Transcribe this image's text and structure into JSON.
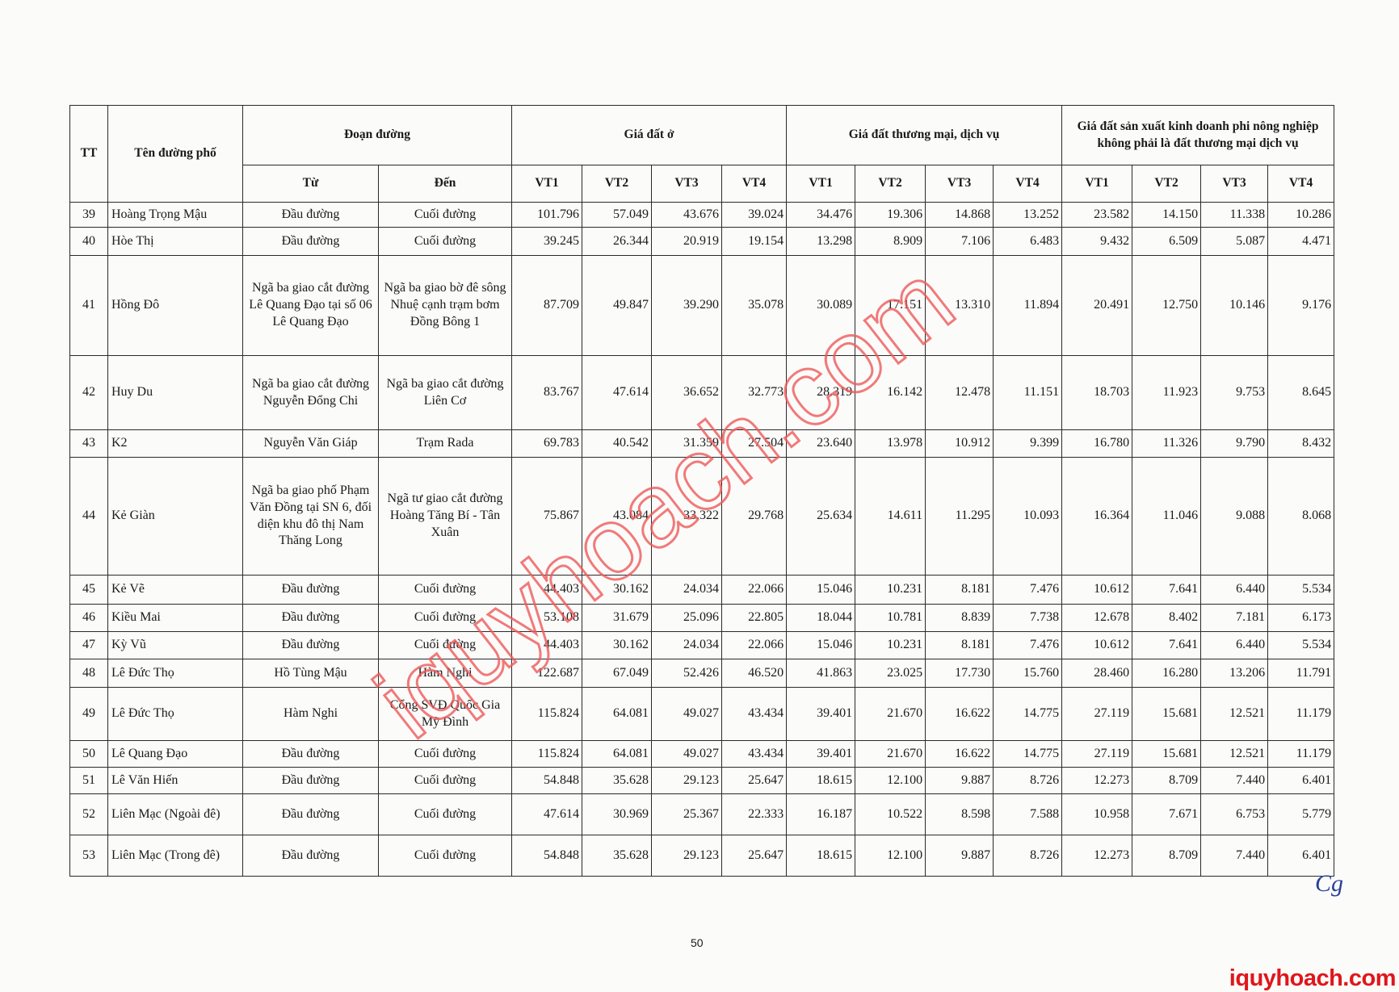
{
  "header": {
    "tt": "TT",
    "street": "Tên đường phố",
    "segment": "Đoạn đường",
    "from": "Từ",
    "to": "Đến",
    "group_residential": "Giá đất ở",
    "group_commercial": "Giá đất thương mại, dịch vụ",
    "group_production": "Giá đất sản xuất kinh doanh phi nông nghiệp không phải là đất thương mại dịch vụ",
    "positions": [
      "VT1",
      "VT2",
      "VT3",
      "VT4",
      "VT1",
      "VT2",
      "VT3",
      "VT4",
      "VT1",
      "VT2",
      "VT3",
      "VT4"
    ]
  },
  "rows": [
    {
      "tt": "39",
      "street": "Hoàng Trọng Mậu",
      "from": "Đầu đường",
      "to": "Cuối đường",
      "prices": [
        "101.796",
        "57.049",
        "43.676",
        "39.024",
        "34.476",
        "19.306",
        "14.868",
        "13.252",
        "23.582",
        "14.150",
        "11.338",
        "10.286"
      ]
    },
    {
      "tt": "40",
      "street": "Hòe Thị",
      "from": "Đầu đường",
      "to": "Cuối đường",
      "prices": [
        "39.245",
        "26.344",
        "20.919",
        "19.154",
        "13.298",
        "8.909",
        "7.106",
        "6.483",
        "9.432",
        "6.509",
        "5.087",
        "4.471"
      ]
    },
    {
      "tt": "41",
      "street": "Hồng Đô",
      "from": "Ngã ba giao cắt đường Lê Quang Đạo tại số 06 Lê Quang Đạo",
      "to": "Ngã ba giao bờ đê sông Nhuệ cạnh trạm bơm Đồng Bông 1",
      "prices": [
        "87.709",
        "49.847",
        "39.290",
        "35.078",
        "30.089",
        "17.151",
        "13.310",
        "11.894",
        "20.491",
        "12.750",
        "10.146",
        "9.176"
      ]
    },
    {
      "tt": "42",
      "street": "Huy Du",
      "from": "Ngã ba giao cắt đường Nguyễn Đổng Chi",
      "to": "Ngã ba giao cắt đường Liên Cơ",
      "prices": [
        "83.767",
        "47.614",
        "36.652",
        "32.773",
        "28.319",
        "16.142",
        "12.478",
        "11.151",
        "18.703",
        "11.923",
        "9.753",
        "8.645"
      ]
    },
    {
      "tt": "43",
      "street": "K2",
      "from": "Nguyễn Văn Giáp",
      "to": "Trạm Rada",
      "prices": [
        "69.783",
        "40.542",
        "31.359",
        "27.504",
        "23.640",
        "13.978",
        "10.912",
        "9.399",
        "16.780",
        "11.326",
        "9.790",
        "8.432"
      ]
    },
    {
      "tt": "44",
      "street": "Kẻ Giàn",
      "from": "Ngã ba giao phố Phạm Văn Đồng tại SN 6, đối diện khu đô thị Nam Thăng Long",
      "to": "Ngã tư giao cắt đường Hoàng Tăng Bí - Tân Xuân",
      "prices": [
        "75.867",
        "43.084",
        "33.322",
        "29.768",
        "25.634",
        "14.611",
        "11.295",
        "10.093",
        "16.364",
        "11.046",
        "9.088",
        "8.068"
      ]
    },
    {
      "tt": "45",
      "street": "Kẻ Vẽ",
      "from": "Đầu đường",
      "to": "Cuối đường",
      "prices": [
        "44.403",
        "30.162",
        "24.034",
        "22.066",
        "15.046",
        "10.231",
        "8.181",
        "7.476",
        "10.612",
        "7.641",
        "6.440",
        "5.534"
      ]
    },
    {
      "tt": "46",
      "street": "Kiều Mai",
      "from": "Đầu đường",
      "to": "Cuối đường",
      "prices": [
        "53.108",
        "31.679",
        "25.096",
        "22.805",
        "18.044",
        "10.781",
        "8.839",
        "7.738",
        "12.678",
        "8.402",
        "7.181",
        "6.173"
      ]
    },
    {
      "tt": "47",
      "street": "Kỳ Vũ",
      "from": "Đầu đường",
      "to": "Cuối đường",
      "prices": [
        "44.403",
        "30.162",
        "24.034",
        "22.066",
        "15.046",
        "10.231",
        "8.181",
        "7.476",
        "10.612",
        "7.641",
        "6.440",
        "5.534"
      ]
    },
    {
      "tt": "48",
      "street": "Lê Đức Thọ",
      "from": "Hồ Tùng Mậu",
      "to": "Hàm Nghi",
      "prices": [
        "122.687",
        "67.049",
        "52.426",
        "46.520",
        "41.863",
        "23.025",
        "17.730",
        "15.760",
        "28.460",
        "16.280",
        "13.206",
        "11.791"
      ]
    },
    {
      "tt": "49",
      "street": "Lê Đức Thọ",
      "from": "Hàm Nghi",
      "to": "Cổng SVĐ Quốc Gia Mỹ Đình",
      "prices": [
        "115.824",
        "64.081",
        "49.027",
        "43.434",
        "39.401",
        "21.670",
        "16.622",
        "14.775",
        "27.119",
        "15.681",
        "12.521",
        "11.179"
      ]
    },
    {
      "tt": "50",
      "street": "Lê Quang Đạo",
      "from": "Đầu đường",
      "to": "Cuối đường",
      "prices": [
        "115.824",
        "64.081",
        "49.027",
        "43.434",
        "39.401",
        "21.670",
        "16.622",
        "14.775",
        "27.119",
        "15.681",
        "12.521",
        "11.179"
      ]
    },
    {
      "tt": "51",
      "street": "Lê Văn Hiến",
      "from": "Đầu đường",
      "to": "Cuối đường",
      "prices": [
        "54.848",
        "35.628",
        "29.123",
        "25.647",
        "18.615",
        "12.100",
        "9.887",
        "8.726",
        "12.273",
        "8.709",
        "7.440",
        "6.401"
      ]
    },
    {
      "tt": "52",
      "street": "Liên Mạc (Ngoài đê)",
      "from": "Đầu đường",
      "to": "Cuối đường",
      "prices": [
        "47.614",
        "30.969",
        "25.367",
        "22.333",
        "16.187",
        "10.522",
        "8.598",
        "7.588",
        "10.958",
        "7.671",
        "6.753",
        "5.779"
      ]
    },
    {
      "tt": "53",
      "street": "Liên Mạc (Trong đê)",
      "from": "Đầu đường",
      "to": "Cuối đường",
      "prices": [
        "54.848",
        "35.628",
        "29.123",
        "25.647",
        "18.615",
        "12.100",
        "9.887",
        "8.726",
        "12.273",
        "8.709",
        "7.440",
        "6.401"
      ]
    }
  ],
  "page_number": "50",
  "signature": "Cg",
  "watermark": "iquyhoach.com",
  "brand": "iquyhoach.com",
  "colors": {
    "watermark": "#ee5a5a",
    "brand": "#e0161b",
    "signature": "#2b3f9a"
  }
}
